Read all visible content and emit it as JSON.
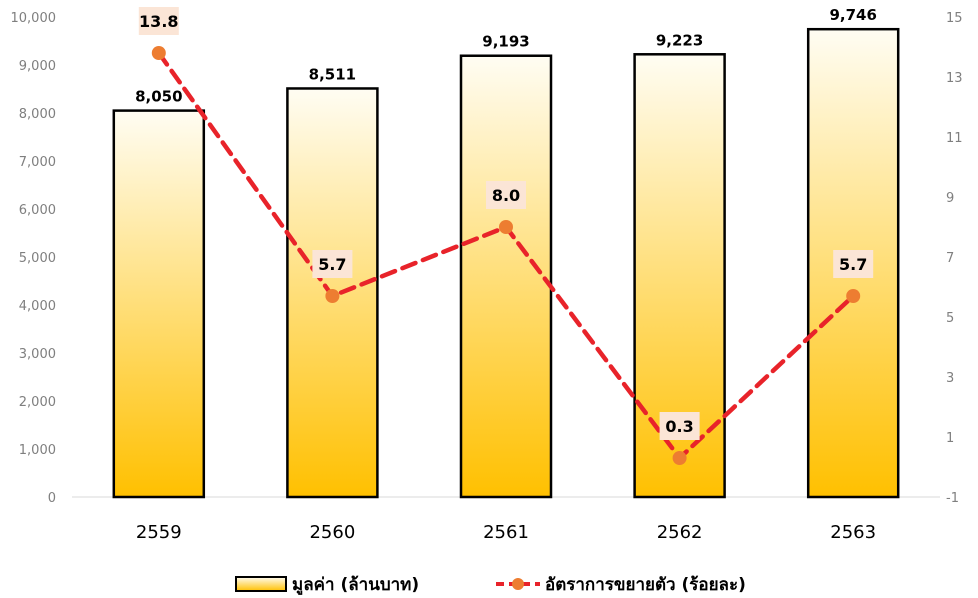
{
  "chart_data": {
    "type": "bar",
    "categories": [
      "2559",
      "2560",
      "2561",
      "2562",
      "2563"
    ],
    "series": [
      {
        "name": "มูลค่า (ล้านบาท)",
        "type": "bar",
        "axis": "left",
        "values": [
          8050,
          8511,
          9193,
          9223,
          9746
        ],
        "labels": [
          "8,050",
          "8,511",
          "9,193",
          "9,223",
          "9,746"
        ]
      },
      {
        "name": "อัตราการขยายตัว (ร้อยละ)",
        "type": "line",
        "axis": "right",
        "values": [
          13.8,
          5.7,
          8.0,
          0.3,
          5.7
        ],
        "labels": [
          "13.8",
          "5.7",
          "8.0",
          "0.3",
          "5.7"
        ]
      }
    ],
    "y_left": {
      "lim": [
        0,
        10000
      ],
      "ticks": [
        "0",
        "1,000",
        "2,000",
        "3,000",
        "4,000",
        "5,000",
        "6,000",
        "7,000",
        "8,000",
        "9,000",
        "10,000"
      ]
    },
    "y_right": {
      "lim": [
        -1,
        15
      ],
      "ticks": [
        "-1",
        "1",
        "3",
        "5",
        "7",
        "9",
        "11",
        "13",
        "15"
      ]
    },
    "grid": false,
    "legend_position": "bottom",
    "colors": {
      "bar_top": "#fffdf3",
      "bar_bottom": "#ffc000",
      "bar_stroke": "#000000",
      "line": "#e8232a",
      "marker": "#ed7d31",
      "label_bg": "#fbe5d6"
    }
  }
}
